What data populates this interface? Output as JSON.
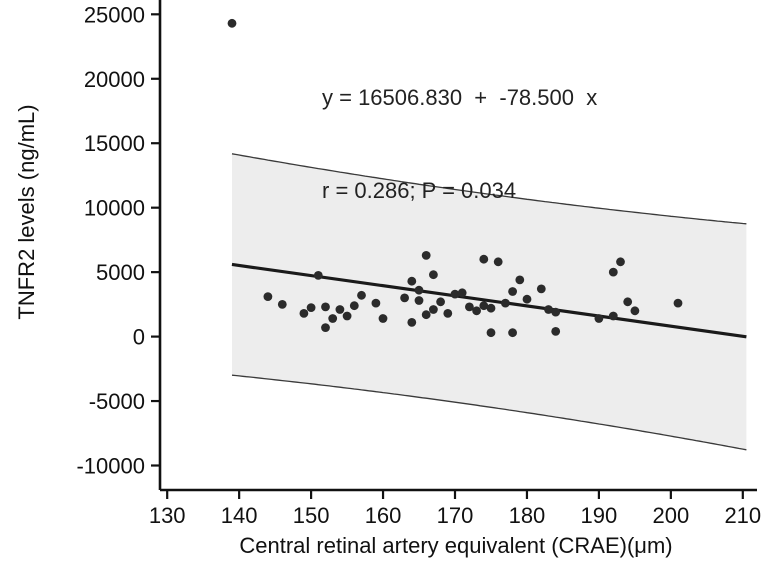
{
  "chart_data": {
    "type": "scatter",
    "title": "",
    "xlabel": "Central retinal artery equivalent (CRAE)(μm)",
    "ylabel": "TNFR2 levels (ng/mL)",
    "xlim": [
      129,
      211
    ],
    "ylim": [
      -11900,
      25800
    ],
    "x_ticks": [
      130,
      140,
      150,
      160,
      170,
      180,
      190,
      200,
      210
    ],
    "y_ticks": [
      -10000,
      -5000,
      0,
      5000,
      10000,
      15000,
      20000,
      25000
    ],
    "grid": false,
    "legend": "none",
    "annotation": {
      "equation": "y = 16506.830  +  -78.500  x",
      "stats": "r = 0.286; P = 0.034"
    },
    "regression": {
      "intercept": 16506.83,
      "slope": -78.5,
      "r": 0.286,
      "p": 0.034,
      "x_start": 139,
      "x_end": 210.5
    },
    "confidence_band": {
      "half_width": 8250,
      "center_x": 171,
      "curvature": 0.33,
      "x_start": 139,
      "x_end": 210.5
    },
    "points": [
      [
        139,
        24300
      ],
      [
        144,
        3100
      ],
      [
        146,
        2500
      ],
      [
        149,
        1800
      ],
      [
        150,
        2250
      ],
      [
        151,
        4750
      ],
      [
        152,
        2300
      ],
      [
        152,
        700
      ],
      [
        153,
        1400
      ],
      [
        154,
        2100
      ],
      [
        155,
        1600
      ],
      [
        156,
        2400
      ],
      [
        157,
        3200
      ],
      [
        159,
        2600
      ],
      [
        160,
        1400
      ],
      [
        163,
        3000
      ],
      [
        164,
        4300
      ],
      [
        164,
        1100
      ],
      [
        165,
        3600
      ],
      [
        165,
        2800
      ],
      [
        166,
        6300
      ],
      [
        166,
        1700
      ],
      [
        167,
        4800
      ],
      [
        167,
        2100
      ],
      [
        168,
        2700
      ],
      [
        169,
        1800
      ],
      [
        170,
        3300
      ],
      [
        171,
        3400
      ],
      [
        172,
        2300
      ],
      [
        173,
        2000
      ],
      [
        174,
        6000
      ],
      [
        174,
        2400
      ],
      [
        175,
        2200
      ],
      [
        175,
        300
      ],
      [
        176,
        5800
      ],
      [
        177,
        2600
      ],
      [
        178,
        3500
      ],
      [
        178,
        300
      ],
      [
        179,
        4400
      ],
      [
        180,
        2900
      ],
      [
        182,
        3700
      ],
      [
        183,
        2100
      ],
      [
        184,
        1900
      ],
      [
        184,
        400
      ],
      [
        190,
        1400
      ],
      [
        192,
        5000
      ],
      [
        192,
        1600
      ],
      [
        193,
        5800
      ],
      [
        194,
        2700
      ],
      [
        195,
        2000
      ],
      [
        201,
        2600
      ]
    ]
  },
  "colors": {
    "background": "#ffffff",
    "band_fill": "#ededed",
    "band_edge": "#3a3a3a",
    "regression_line": "#1a1a1a",
    "point": "#2b2b2b",
    "axis": "#111111",
    "text": "#111111"
  }
}
